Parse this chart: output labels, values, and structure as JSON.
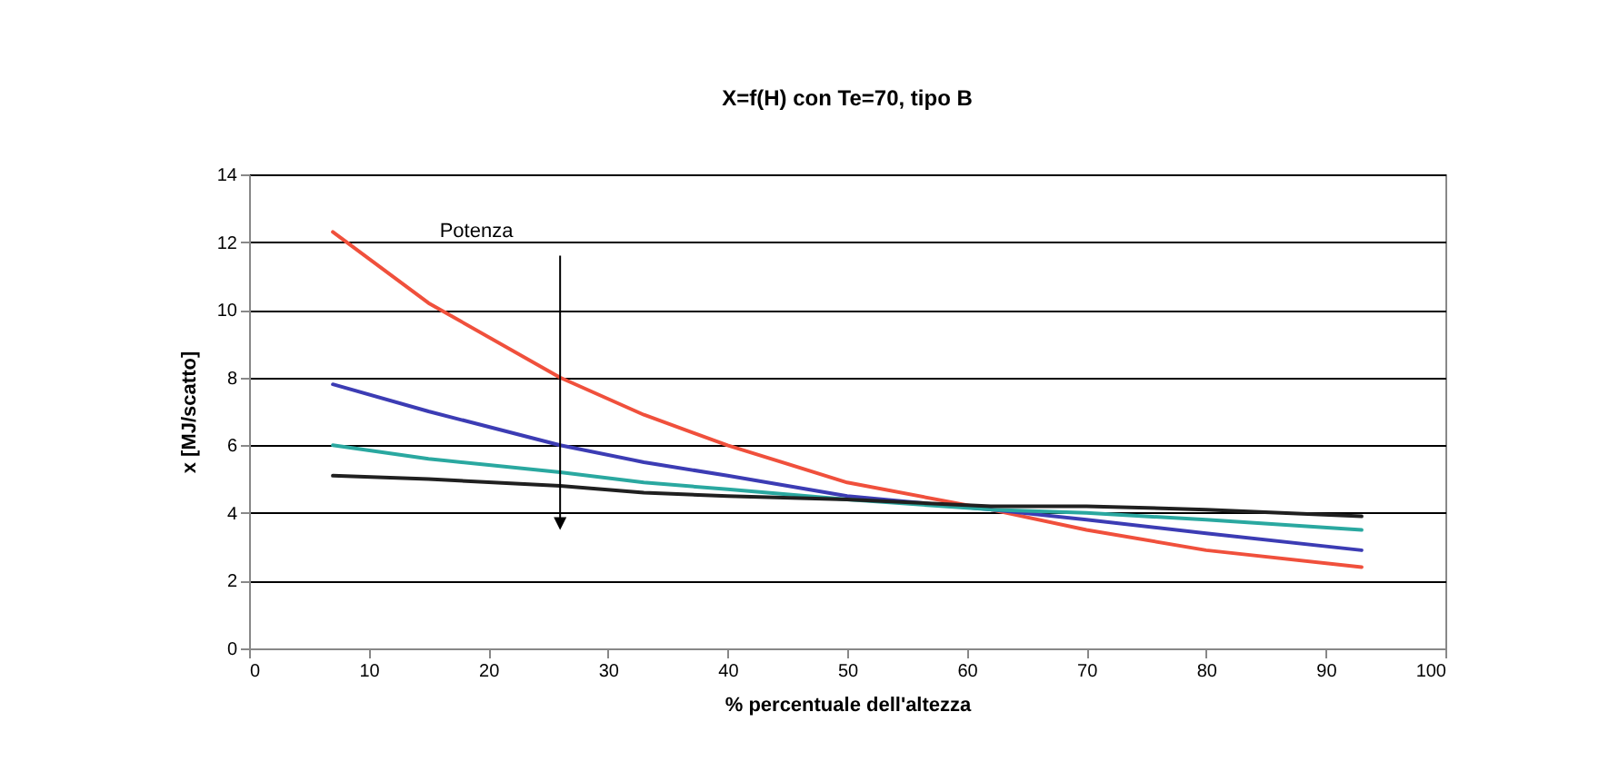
{
  "chart_data": {
    "type": "line",
    "title": "X=f(H) con Te=70, tipo B",
    "xlabel": "% percentuale dell'altezza",
    "ylabel": "x [MJ/scatto]",
    "x": [
      7,
      15,
      26,
      33,
      40,
      50,
      62,
      70,
      80,
      93
    ],
    "series": [
      {
        "color": "#f0503c",
        "values": [
          12.3,
          10.2,
          8.0,
          6.9,
          6.0,
          4.9,
          4.1,
          3.5,
          2.9,
          2.4
        ]
      },
      {
        "color": "#3c3cb4",
        "values": [
          7.8,
          7.0,
          6.0,
          5.5,
          5.1,
          4.5,
          4.1,
          3.8,
          3.4,
          2.9
        ]
      },
      {
        "color": "#2aa8a0",
        "values": [
          6.0,
          5.6,
          5.2,
          4.9,
          4.7,
          4.4,
          4.1,
          4.0,
          3.8,
          3.5
        ]
      },
      {
        "color": "#202020",
        "values": [
          5.1,
          5.0,
          4.8,
          4.6,
          4.5,
          4.4,
          4.2,
          4.2,
          4.1,
          3.9
        ]
      }
    ],
    "annotations": [
      "Potenza"
    ],
    "xlim": [
      0,
      100
    ],
    "xticks": [
      0,
      10,
      20,
      30,
      40,
      50,
      60,
      70,
      80,
      90,
      100
    ],
    "ylim": [
      0,
      14
    ],
    "yticks": [
      0,
      2,
      4,
      6,
      8,
      10,
      12,
      14
    ],
    "grid": "y",
    "marker": "none",
    "line_style": "solid"
  }
}
